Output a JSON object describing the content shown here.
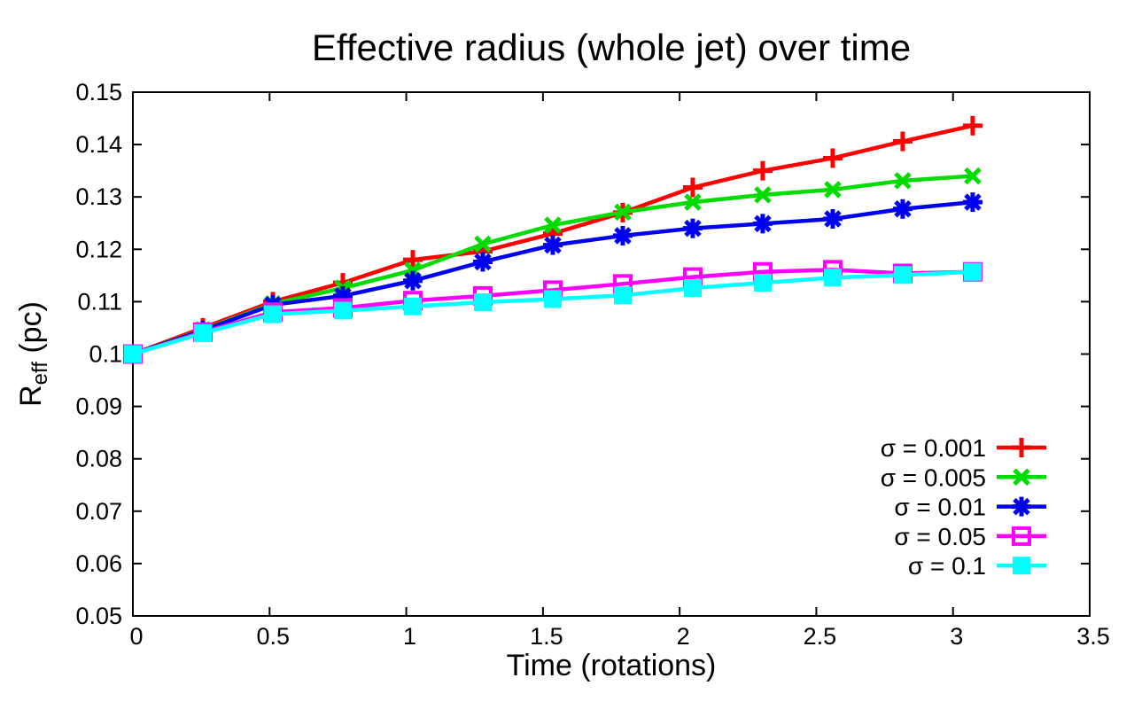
{
  "chart_data": {
    "type": "line",
    "title": "Effective radius (whole jet) over time",
    "xlabel": "Time (rotations)",
    "ylabel_parts": [
      {
        "text": "R",
        "sub": false
      },
      {
        "text": "eff",
        "sub": true
      },
      {
        "text": " (pc)",
        "sub": false
      }
    ],
    "xlim": [
      0,
      3.5
    ],
    "ylim": [
      0.05,
      0.15
    ],
    "xticks": [
      0,
      0.5,
      1,
      1.5,
      2,
      2.5,
      3,
      3.5
    ],
    "xtick_labels": [
      "0",
      "0.5",
      "1",
      "1.5",
      "2",
      "2.5",
      "3",
      "3.5"
    ],
    "yticks": [
      0.05,
      0.06,
      0.07,
      0.08,
      0.09,
      0.1,
      0.11,
      0.12,
      0.13,
      0.14,
      0.15
    ],
    "ytick_labels": [
      "0.05",
      "0.06",
      "0.07",
      "0.08",
      "0.09",
      "0.1",
      "0.11",
      "0.12",
      "0.13",
      "0.14",
      "0.15"
    ],
    "grid": false,
    "legend_position": "inside-right",
    "background_color": "#ffffff",
    "axis_color": "#000000",
    "x": [
      0,
      0.256,
      0.512,
      0.768,
      1.024,
      1.28,
      1.536,
      1.792,
      2.048,
      2.304,
      2.56,
      2.816,
      3.072
    ],
    "series": [
      {
        "name": "σ = 0.001",
        "color": "#ff0000",
        "marker": "plus",
        "values": [
          0.1,
          0.105,
          0.11,
          0.1136,
          0.118,
          0.1196,
          0.123,
          0.127,
          0.1318,
          0.135,
          0.1374,
          0.1406,
          0.1436
        ]
      },
      {
        "name": "σ = 0.005",
        "color": "#00dc00",
        "marker": "times",
        "values": [
          0.1,
          0.1046,
          0.1096,
          0.1126,
          0.116,
          0.121,
          0.1246,
          0.1271,
          0.129,
          0.1304,
          0.1314,
          0.1331,
          0.134
        ]
      },
      {
        "name": "σ = 0.01",
        "color": "#0000f0",
        "marker": "asterisk",
        "values": [
          0.1,
          0.1045,
          0.1094,
          0.1111,
          0.114,
          0.1176,
          0.1208,
          0.1226,
          0.124,
          0.1249,
          0.1258,
          0.1277,
          0.129
        ]
      },
      {
        "name": "σ = 0.05",
        "color": "#ff00ff",
        "marker": "open-square",
        "values": [
          0.1,
          0.1042,
          0.108,
          0.1088,
          0.1102,
          0.1111,
          0.1122,
          0.1134,
          0.1147,
          0.1157,
          0.1161,
          0.1154,
          0.1157
        ]
      },
      {
        "name": "σ = 0.1",
        "color": "#00ffff",
        "marker": "filled-square",
        "values": [
          0.1,
          0.104,
          0.1076,
          0.1083,
          0.1091,
          0.1099,
          0.1105,
          0.1112,
          0.1126,
          0.1136,
          0.1146,
          0.1151,
          0.1157
        ]
      }
    ]
  }
}
